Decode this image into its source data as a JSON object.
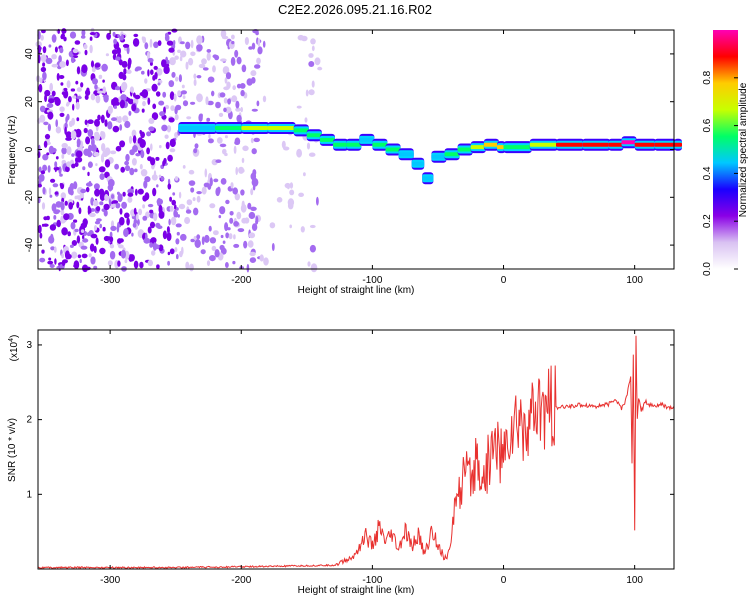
{
  "title": "C2E2.2026.095.21.16.R02",
  "chart_data": [
    {
      "type": "heatmap",
      "xlabel": "Height of straight line (km)",
      "ylabel": "Frequency (Hz)",
      "xlim": [
        -355,
        130
      ],
      "ylim": [
        -50,
        50
      ],
      "xticks": [
        -300,
        -200,
        -100,
        0,
        100
      ],
      "yticks": [
        -40,
        -20,
        0,
        20,
        40
      ],
      "colorbar": {
        "label": "Normalized spectral amplitude",
        "range": [
          0.0,
          1.0
        ],
        "ticks": [
          0.0,
          0.2,
          0.4,
          0.6,
          0.8
        ],
        "tick_labels": [
          "0.0",
          "0.2",
          "0.4",
          "0.6",
          "0.8"
        ],
        "colors": [
          "#ffffff",
          "#d9c2f2",
          "#8a00e6",
          "#1a00ff",
          "#00c8ff",
          "#00ff66",
          "#c8ff00",
          "#ffcc00",
          "#ff0000",
          "#ff00b4"
        ]
      },
      "ridge": {
        "x": [
          -248,
          -220,
          -200,
          -180,
          -160,
          -150,
          -140,
          -130,
          -120,
          -110,
          -100,
          -90,
          -80,
          -70,
          -62,
          -55,
          -45,
          -35,
          -25,
          -15,
          -5,
          0,
          20,
          40,
          60,
          80,
          90,
          100,
          115,
          130
        ],
        "freq": [
          9,
          9,
          9,
          9,
          8,
          6,
          4,
          2,
          2,
          4,
          2,
          0,
          -2,
          -6,
          -12,
          -3,
          -2,
          0,
          1,
          2,
          1,
          1,
          2,
          2,
          2,
          2,
          3,
          2,
          2,
          2
        ],
        "amplitude": [
          0.45,
          0.55,
          0.65,
          0.7,
          0.6,
          0.5,
          0.5,
          0.55,
          0.6,
          0.45,
          0.5,
          0.5,
          0.45,
          0.45,
          0.4,
          0.4,
          0.5,
          0.6,
          0.7,
          0.8,
          0.75,
          0.6,
          0.7,
          0.85,
          0.9,
          0.9,
          0.95,
          0.85,
          0.9,
          0.85
        ]
      },
      "noise_region_x": [
        -355,
        -140
      ]
    },
    {
      "type": "line",
      "xlabel": "Height of straight line (km)",
      "ylabel": "SNR (10 * v/v)",
      "scale_label": "(x10",
      "scale_exp": "4",
      "xlim": [
        -355,
        130
      ],
      "ylim": [
        0,
        3.2
      ],
      "xticks": [
        -300,
        -200,
        -100,
        0,
        100
      ],
      "yticks": [
        1,
        2,
        3
      ],
      "line_color": "#e8312f",
      "series": [
        {
          "name": "SNR",
          "x": [
            -355,
            -300,
            -250,
            -200,
            -160,
            -130,
            -115,
            -105,
            -100,
            -95,
            -90,
            -85,
            -80,
            -75,
            -70,
            -65,
            -60,
            -55,
            -50,
            -45,
            -40,
            -38,
            -35,
            -32,
            -30,
            -25,
            -20,
            -15,
            -10,
            -5,
            0,
            5,
            10,
            15,
            20,
            25,
            30,
            35,
            40,
            50,
            60,
            70,
            80,
            85,
            90,
            93,
            95,
            97,
            98,
            99,
            100,
            101,
            102,
            103,
            105,
            108,
            110,
            115,
            120,
            125,
            130
          ],
          "y": [
            0.02,
            0.02,
            0.02,
            0.03,
            0.04,
            0.05,
            0.15,
            0.45,
            0.3,
            0.55,
            0.35,
            0.45,
            0.25,
            0.5,
            0.3,
            0.45,
            0.2,
            0.5,
            0.35,
            0.12,
            0.3,
            0.7,
            1.2,
            0.95,
            1.3,
            1.15,
            1.45,
            1.2,
            1.55,
            1.7,
            1.45,
            1.85,
            1.9,
            2.0,
            1.9,
            2.05,
            2.1,
            2.12,
            2.15,
            2.18,
            2.2,
            2.18,
            2.2,
            2.28,
            2.15,
            2.25,
            2.4,
            2.6,
            1.4,
            2.9,
            0.5,
            3.1,
            2.0,
            2.3,
            2.1,
            2.25,
            2.2,
            2.18,
            2.2,
            2.17,
            2.15
          ]
        }
      ]
    }
  ]
}
